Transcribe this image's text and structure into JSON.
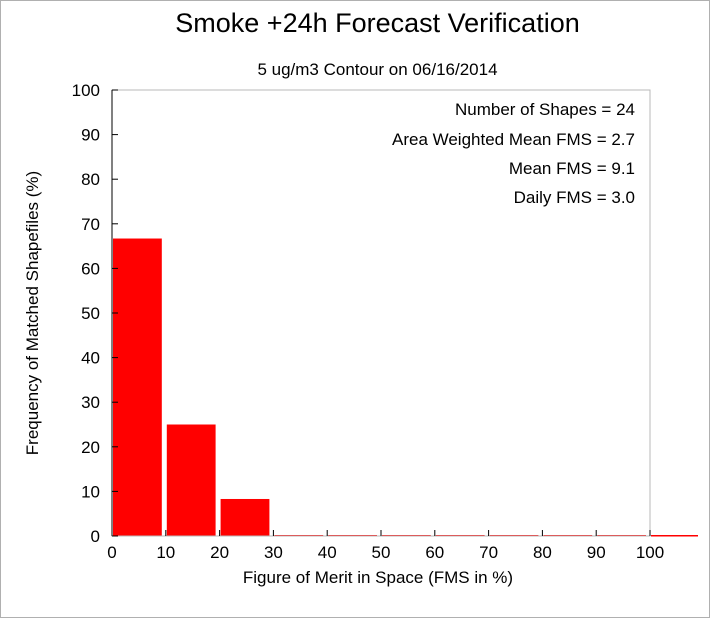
{
  "chart_data": {
    "type": "bar",
    "title": "Smoke +24h Forecast Verification",
    "subtitle": "5 ug/m3 Contour on 06/16/2014",
    "xlabel": "Figure of Merit in Space (FMS in %)",
    "ylabel": "Frequency of Matched Shapefiles (%)",
    "xlim": [
      0,
      100
    ],
    "ylim": [
      0,
      100
    ],
    "xticks": [
      0,
      10,
      20,
      30,
      40,
      50,
      60,
      70,
      80,
      90,
      100
    ],
    "yticks": [
      0,
      10,
      20,
      30,
      40,
      50,
      60,
      70,
      80,
      90,
      100
    ],
    "bins": [
      {
        "start": 0,
        "end": 10,
        "value": 66.7
      },
      {
        "start": 10,
        "end": 20,
        "value": 25.0
      },
      {
        "start": 20,
        "end": 30,
        "value": 8.3
      },
      {
        "start": 30,
        "end": 40,
        "value": 0
      },
      {
        "start": 40,
        "end": 50,
        "value": 0
      },
      {
        "start": 50,
        "end": 60,
        "value": 0
      },
      {
        "start": 60,
        "end": 70,
        "value": 0
      },
      {
        "start": 70,
        "end": 80,
        "value": 0
      },
      {
        "start": 80,
        "end": 90,
        "value": 0
      },
      {
        "start": 90,
        "end": 100,
        "value": 0
      },
      {
        "start": 100,
        "end": 110,
        "value": 0
      }
    ],
    "bar_color": "#ff0000",
    "grid": false,
    "annotations": [
      "Number of Shapes = 24",
      "Area Weighted Mean FMS = 2.7",
      "Mean FMS = 9.1",
      "Daily FMS = 3.0"
    ]
  }
}
